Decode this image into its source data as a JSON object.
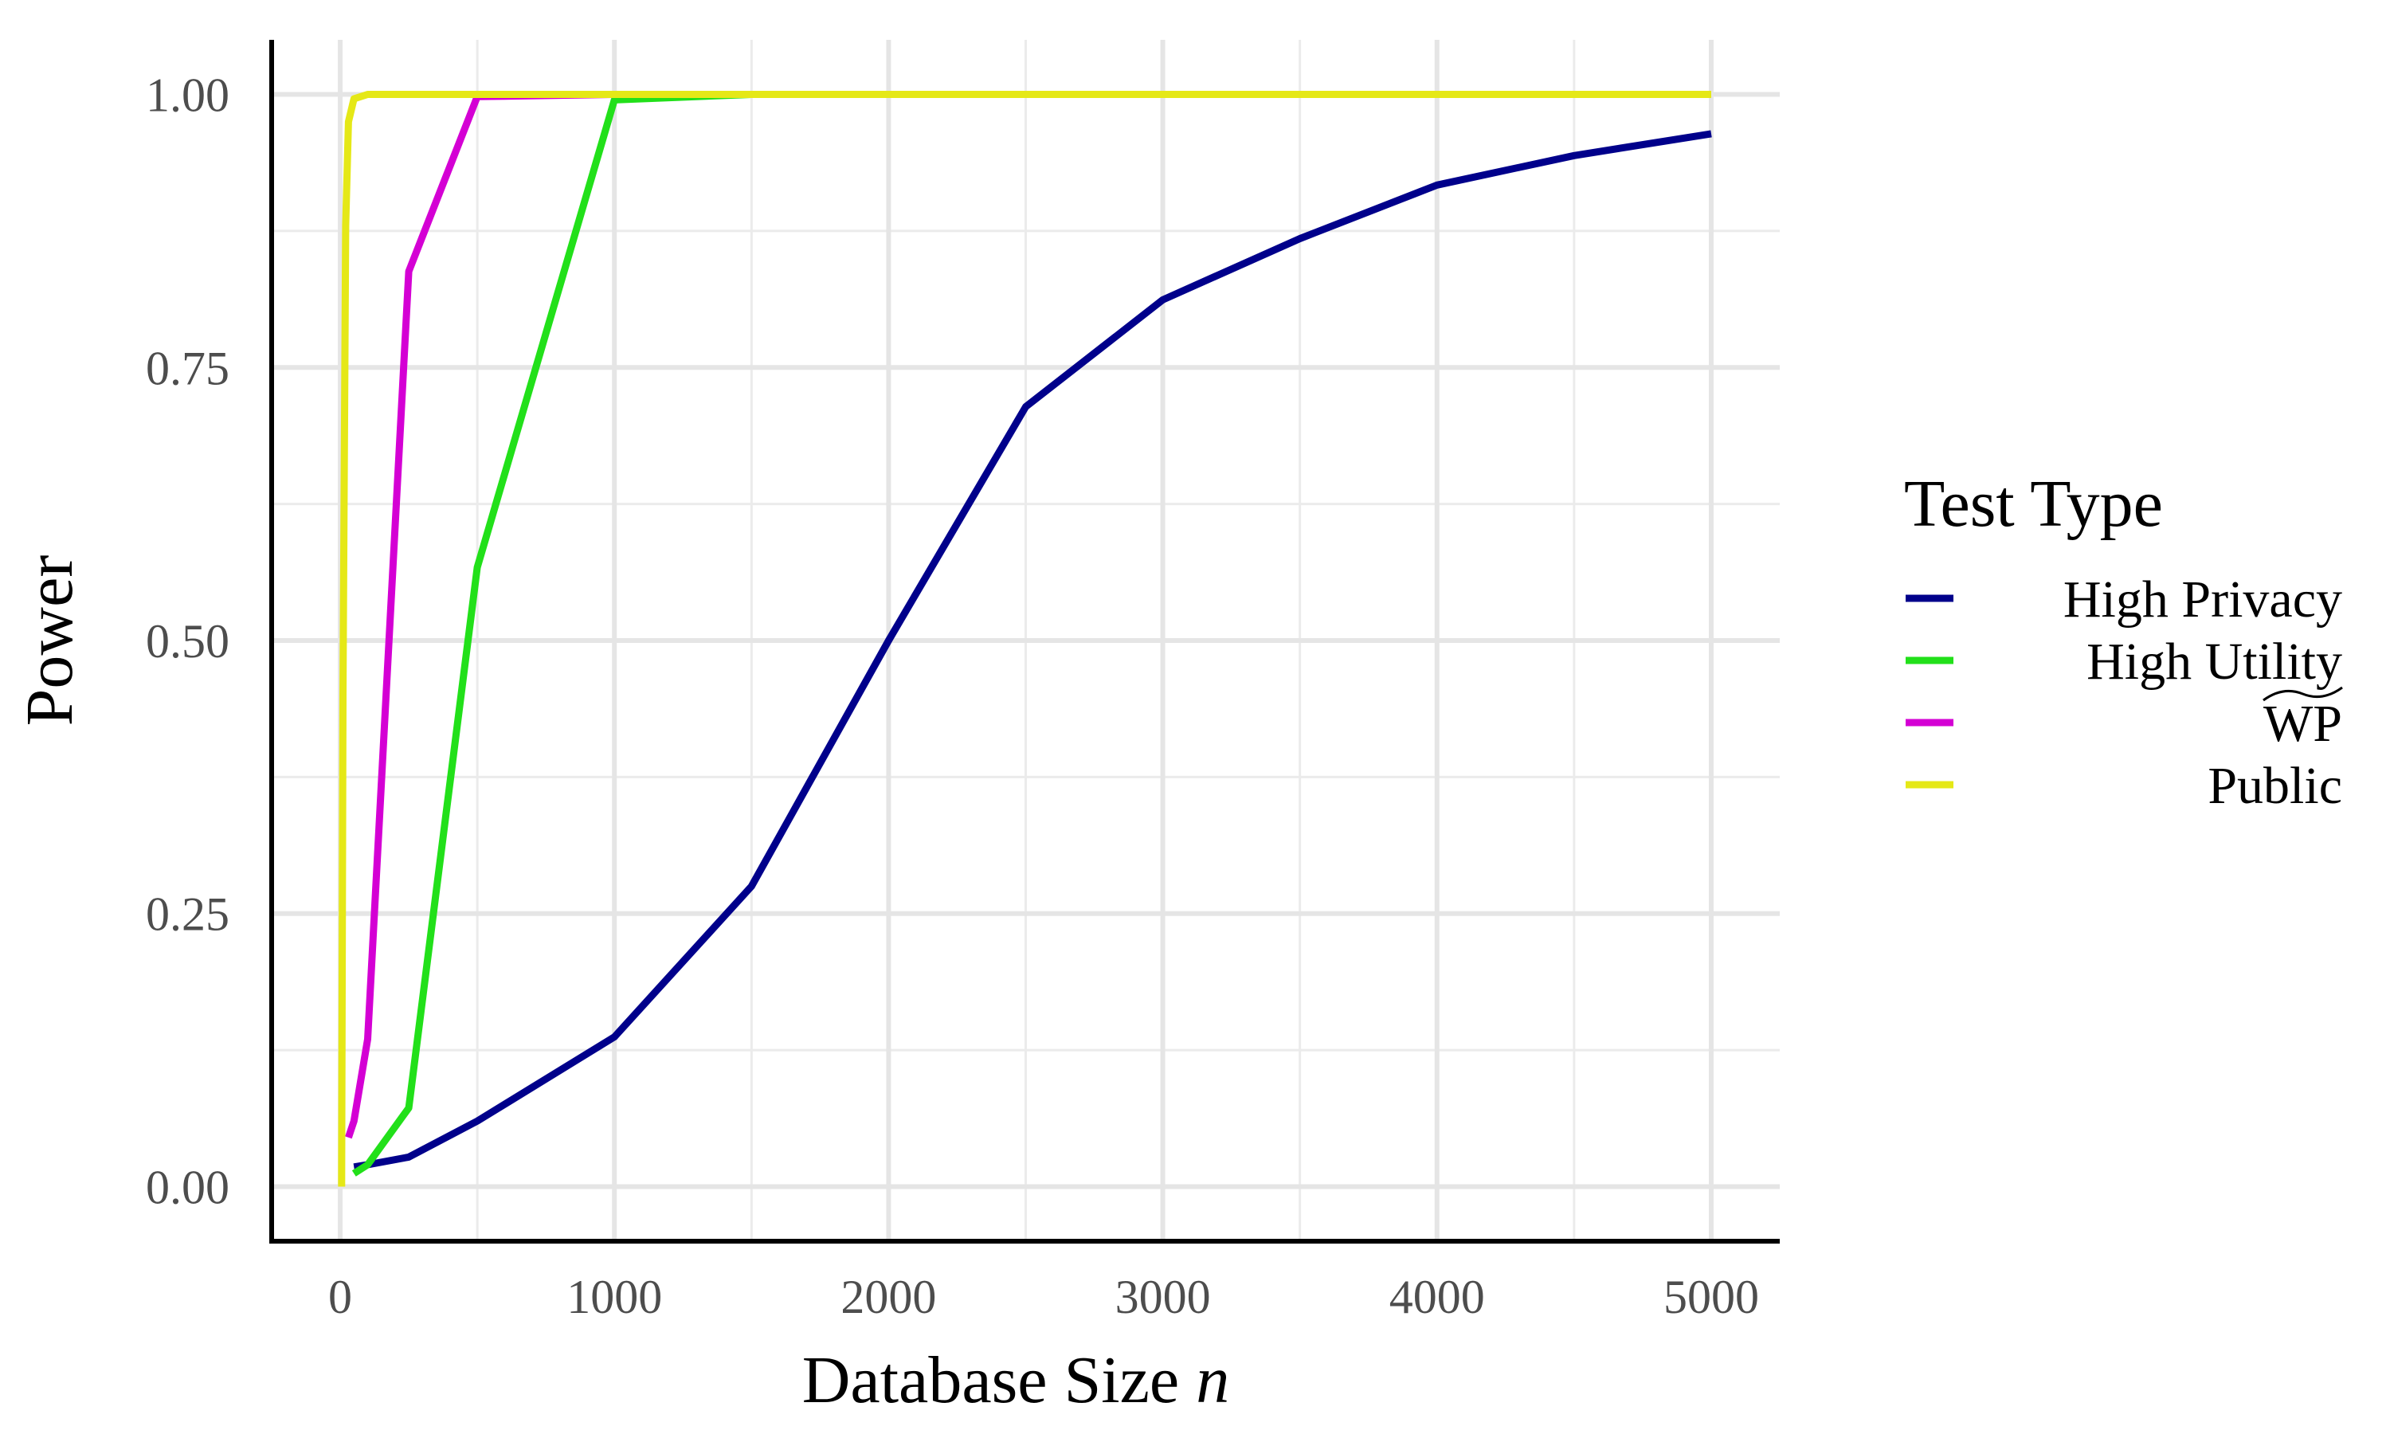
{
  "chart_data": {
    "type": "line",
    "xlabel": "Database Size",
    "xlabel_var": "n",
    "ylabel": "Power",
    "xlim": [
      -250,
      5250
    ],
    "ylim": [
      -0.05,
      1.05
    ],
    "xticks": [
      0,
      1000,
      2000,
      3000,
      4000,
      5000
    ],
    "xtick_labels": [
      "0",
      "1000",
      "2000",
      "3000",
      "4000",
      "5000"
    ],
    "yticks": [
      0,
      0.25,
      0.5,
      0.75,
      1
    ],
    "ytick_labels": [
      "0.00",
      "0.25",
      "0.50",
      "0.75",
      "1.00"
    ],
    "grid": true,
    "legend": {
      "title": "Test Type",
      "placement": "right"
    },
    "series": [
      {
        "name": "High Privacy",
        "color": "#00008B",
        "x": [
          50,
          100,
          250,
          500,
          1000,
          1500,
          2000,
          2500,
          3000,
          3500,
          4000,
          4500,
          5000
        ],
        "y": [
          0.018,
          0.02,
          0.027,
          0.06,
          0.137,
          0.275,
          0.5,
          0.714,
          0.812,
          0.868,
          0.917,
          0.944,
          0.964
        ]
      },
      {
        "name": "High Utility",
        "color": "#22E01A",
        "x": [
          50,
          100,
          250,
          500,
          1000,
          1500,
          2000,
          2500,
          3000,
          3500,
          4000,
          4500,
          5000
        ],
        "y": [
          0.012,
          0.02,
          0.072,
          0.567,
          0.995,
          1.0,
          1.0,
          1.0,
          1.0,
          1.0,
          1.0,
          1.0,
          1.0
        ]
      },
      {
        "name": "WP",
        "name_overmark": "~",
        "color": "#D400D4",
        "x": [
          30,
          50,
          100,
          250,
          500,
          1000,
          1500,
          2000,
          2500,
          3000,
          3500,
          4000,
          4500,
          5000
        ],
        "y": [
          0.045,
          0.06,
          0.135,
          0.838,
          0.998,
          1.0,
          1.0,
          1.0,
          1.0,
          1.0,
          1.0,
          1.0,
          1.0,
          1.0
        ]
      },
      {
        "name": "Public",
        "color": "#E5E817",
        "x": [
          5,
          10,
          20,
          30,
          50,
          100,
          250,
          500,
          1000,
          1500,
          2000,
          2500,
          3000,
          3500,
          4000,
          4500,
          5000
        ],
        "y": [
          0.0,
          0.45,
          0.88,
          0.975,
          0.996,
          1.0,
          1.0,
          1.0,
          1.0,
          1.0,
          1.0,
          1.0,
          1.0,
          1.0,
          1.0,
          1.0,
          1.0
        ]
      }
    ]
  }
}
